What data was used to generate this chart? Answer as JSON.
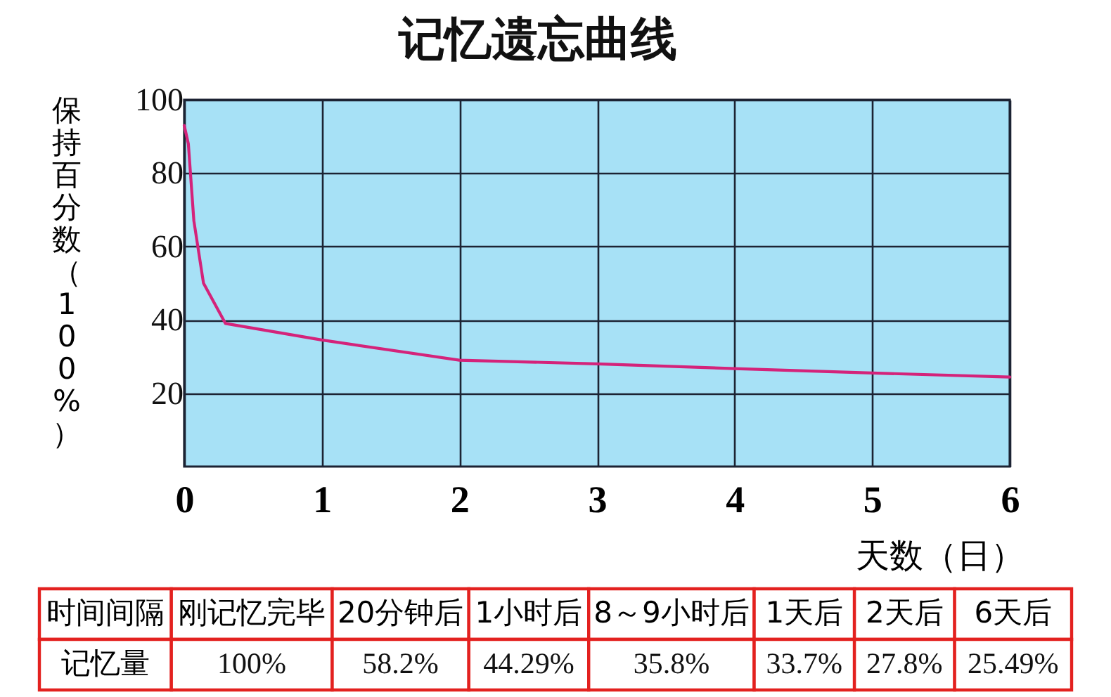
{
  "chart_data": [
    {
      "type": "line",
      "title": "记忆遗忘曲线",
      "xlabel": "天数（日）",
      "ylabel": "保持百分数（100%）",
      "x": [
        0,
        0.03,
        0.07,
        0.14,
        0.3,
        1,
        2,
        3,
        4,
        5,
        6
      ],
      "series": [
        {
          "color": "#d4237a",
          "values": [
            93,
            88,
            67,
            50,
            39,
            34.5,
            29,
            28,
            26.7,
            25.5,
            24.4
          ]
        }
      ],
      "xlim": [
        0,
        6
      ],
      "ylim": [
        0,
        100
      ],
      "xticks": [
        0,
        1,
        2,
        3,
        4,
        5,
        6
      ],
      "yticks": [
        20,
        40,
        60,
        80,
        100
      ],
      "grid": true
    },
    {
      "type": "other",
      "xlabel": "时间间隔",
      "ylabel": "记忆量",
      "categories": [
        "刚记忆完毕",
        "20分钟后",
        "1小时后",
        "8～9小时后",
        "1天后",
        "2天后",
        "6天后"
      ],
      "value_labels": [
        "100%",
        "58.2%",
        "44.29%",
        "35.8%",
        "33.7%",
        "27.8%",
        "25.49%"
      ]
    }
  ]
}
